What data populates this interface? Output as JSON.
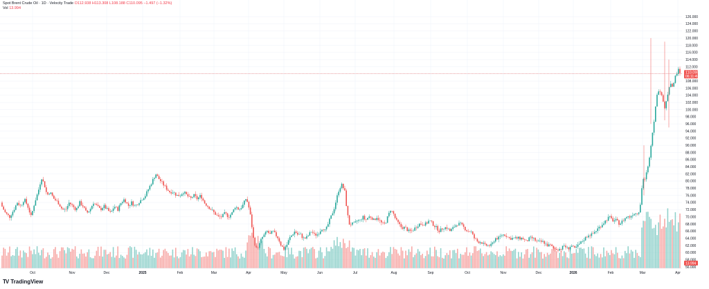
{
  "legend": {
    "symbol": "Spot Brent Crude Oil · 1D · Velocity Trade",
    "ohlc": "O112.938 H113.308 L108.188 C110.095 −1.497 (−1.32%)",
    "vol_label": "Vol",
    "vol_value": "13.994"
  },
  "price_label": {
    "value": "110.095",
    "countdown": "06:11:49"
  },
  "volume_label": "13.994",
  "brand": {
    "name": "TradingView",
    "logo_text": "TV"
  },
  "colors": {
    "up": "#26a69a",
    "down": "#ef5350",
    "up_vol": "#92d2cc",
    "down_vol": "#f7a9a7",
    "grid": "#f0f3fa",
    "axis_text": "#131722"
  },
  "chart_data": {
    "type": "candlestick",
    "title": "Spot Brent Crude Oil · 1D · Velocity Trade",
    "y_range": [
      54,
      127
    ],
    "y_ticks": [
      56,
      58,
      60,
      62,
      64,
      66,
      68,
      70,
      72,
      74,
      76,
      78,
      80,
      82,
      84,
      86,
      88,
      90,
      92,
      94,
      96,
      98,
      100,
      102,
      104,
      106,
      108,
      110,
      112,
      114,
      116,
      118,
      120,
      122,
      124,
      126
    ],
    "x_labels": [
      "Oct",
      "Nov",
      "Dec",
      "2025",
      "Feb",
      "Mar",
      "Apr",
      "May",
      "Jun",
      "Jul",
      "Aug",
      "Sep",
      "Oct",
      "Nov",
      "Dec",
      "2026",
      "Feb",
      "Mar",
      "Apr"
    ],
    "x_label_positions": [
      47,
      104,
      154,
      206,
      260,
      309,
      359,
      410,
      462,
      513,
      569,
      622,
      675,
      727,
      778,
      828,
      882,
      928,
      979
    ],
    "last_close": 110.095,
    "price_path": [
      [
        0,
        74
      ],
      [
        8,
        71
      ],
      [
        14,
        70
      ],
      [
        20,
        72
      ],
      [
        25,
        74
      ],
      [
        30,
        73
      ],
      [
        35,
        75
      ],
      [
        40,
        73
      ],
      [
        45,
        70
      ],
      [
        50,
        74
      ],
      [
        55,
        77
      ],
      [
        60,
        81
      ],
      [
        64,
        79
      ],
      [
        68,
        76
      ],
      [
        72,
        77
      ],
      [
        78,
        75
      ],
      [
        84,
        74
      ],
      [
        90,
        72
      ],
      [
        95,
        72
      ],
      [
        100,
        74
      ],
      [
        105,
        73
      ],
      [
        110,
        72
      ],
      [
        115,
        74
      ],
      [
        120,
        73
      ],
      [
        125,
        71
      ],
      [
        130,
        72
      ],
      [
        135,
        74
      ],
      [
        140,
        73
      ],
      [
        145,
        72
      ],
      [
        150,
        73
      ],
      [
        155,
        72
      ],
      [
        160,
        71
      ],
      [
        165,
        73
      ],
      [
        170,
        72
      ],
      [
        175,
        74
      ],
      [
        180,
        75
      ],
      [
        185,
        73
      ],
      [
        190,
        74
      ],
      [
        195,
        73
      ],
      [
        200,
        74
      ],
      [
        205,
        75
      ],
      [
        210,
        76
      ],
      [
        215,
        78
      ],
      [
        220,
        80
      ],
      [
        225,
        82
      ],
      [
        228,
        81
      ],
      [
        232,
        80
      ],
      [
        236,
        79
      ],
      [
        240,
        78
      ],
      [
        245,
        77
      ],
      [
        250,
        77
      ],
      [
        255,
        76
      ],
      [
        260,
        76
      ],
      [
        265,
        77
      ],
      [
        270,
        76
      ],
      [
        275,
        75
      ],
      [
        280,
        76
      ],
      [
        285,
        75
      ],
      [
        290,
        76
      ],
      [
        295,
        74
      ],
      [
        300,
        73
      ],
      [
        305,
        72
      ],
      [
        310,
        71
      ],
      [
        315,
        70
      ],
      [
        320,
        70
      ],
      [
        325,
        71
      ],
      [
        330,
        70
      ],
      [
        335,
        71
      ],
      [
        340,
        73
      ],
      [
        345,
        72
      ],
      [
        350,
        73
      ],
      [
        355,
        75
      ],
      [
        358,
        74
      ],
      [
        362,
        70
      ],
      [
        366,
        64
      ],
      [
        370,
        61
      ],
      [
        374,
        62
      ],
      [
        378,
        64
      ],
      [
        382,
        65
      ],
      [
        386,
        66
      ],
      [
        390,
        65
      ],
      [
        394,
        66
      ],
      [
        398,
        65
      ],
      [
        402,
        64
      ],
      [
        406,
        62
      ],
      [
        410,
        61
      ],
      [
        414,
        62
      ],
      [
        418,
        64
      ],
      [
        422,
        65
      ],
      [
        426,
        66
      ],
      [
        430,
        65
      ],
      [
        434,
        65
      ],
      [
        438,
        64
      ],
      [
        442,
        64
      ],
      [
        446,
        65
      ],
      [
        450,
        66
      ],
      [
        454,
        65
      ],
      [
        458,
        65
      ],
      [
        462,
        66
      ],
      [
        466,
        67
      ],
      [
        470,
        66
      ],
      [
        474,
        68
      ],
      [
        478,
        70
      ],
      [
        482,
        72
      ],
      [
        486,
        75
      ],
      [
        490,
        78
      ],
      [
        494,
        79
      ],
      [
        498,
        77
      ],
      [
        501,
        72
      ],
      [
        504,
        68
      ],
      [
        508,
        68
      ],
      [
        512,
        68
      ],
      [
        516,
        69
      ],
      [
        520,
        69
      ],
      [
        524,
        70
      ],
      [
        528,
        69
      ],
      [
        532,
        70
      ],
      [
        536,
        70
      ],
      [
        540,
        69
      ],
      [
        544,
        70
      ],
      [
        548,
        69
      ],
      [
        552,
        68
      ],
      [
        556,
        68
      ],
      [
        560,
        70
      ],
      [
        564,
        72
      ],
      [
        568,
        71
      ],
      [
        572,
        69
      ],
      [
        576,
        68
      ],
      [
        580,
        67
      ],
      [
        585,
        67
      ],
      [
        590,
        66
      ],
      [
        595,
        66
      ],
      [
        600,
        67
      ],
      [
        605,
        68
      ],
      [
        610,
        68
      ],
      [
        615,
        68
      ],
      [
        620,
        69
      ],
      [
        625,
        68
      ],
      [
        630,
        67
      ],
      [
        635,
        66
      ],
      [
        640,
        67
      ],
      [
        645,
        67
      ],
      [
        650,
        66
      ],
      [
        655,
        67
      ],
      [
        660,
        68
      ],
      [
        665,
        68
      ],
      [
        670,
        67
      ],
      [
        675,
        66
      ],
      [
        680,
        66
      ],
      [
        685,
        64
      ],
      [
        690,
        63
      ],
      [
        695,
        63
      ],
      [
        700,
        62
      ],
      [
        705,
        62
      ],
      [
        710,
        62
      ],
      [
        715,
        64
      ],
      [
        720,
        64
      ],
      [
        725,
        65
      ],
      [
        730,
        65
      ],
      [
        735,
        64
      ],
      [
        740,
        64
      ],
      [
        745,
        64
      ],
      [
        750,
        64
      ],
      [
        755,
        64
      ],
      [
        760,
        63
      ],
      [
        765,
        64
      ],
      [
        770,
        64
      ],
      [
        775,
        63
      ],
      [
        780,
        63
      ],
      [
        785,
        63
      ],
      [
        790,
        62
      ],
      [
        795,
        62
      ],
      [
        800,
        61
      ],
      [
        805,
        61
      ],
      [
        810,
        61
      ],
      [
        815,
        62
      ],
      [
        820,
        61
      ],
      [
        825,
        62
      ],
      [
        830,
        61
      ],
      [
        835,
        62
      ],
      [
        840,
        63
      ],
      [
        845,
        64
      ],
      [
        850,
        65
      ],
      [
        855,
        65
      ],
      [
        860,
        66
      ],
      [
        865,
        67
      ],
      [
        870,
        68
      ],
      [
        875,
        69
      ],
      [
        880,
        70
      ],
      [
        885,
        69
      ],
      [
        890,
        69
      ],
      [
        895,
        68
      ],
      [
        900,
        69
      ],
      [
        905,
        70
      ],
      [
        910,
        70
      ],
      [
        915,
        71
      ],
      [
        920,
        71
      ],
      [
        924,
        72
      ],
      [
        928,
        80
      ],
      [
        932,
        81
      ],
      [
        936,
        84
      ],
      [
        940,
        90
      ],
      [
        944,
        96
      ],
      [
        948,
        103
      ],
      [
        952,
        106
      ],
      [
        956,
        104
      ],
      [
        960,
        100
      ],
      [
        964,
        104
      ],
      [
        968,
        108
      ],
      [
        972,
        106
      ],
      [
        976,
        110
      ],
      [
        980,
        111
      ],
      [
        983,
        110
      ]
    ],
    "spikes": [
      {
        "x": 940,
        "high": 120,
        "low": 96
      },
      {
        "x": 960,
        "high": 119,
        "low": 97
      },
      {
        "x": 966,
        "high": 114,
        "low": 95
      },
      {
        "x": 930,
        "high": 90,
        "low": 76
      }
    ]
  }
}
